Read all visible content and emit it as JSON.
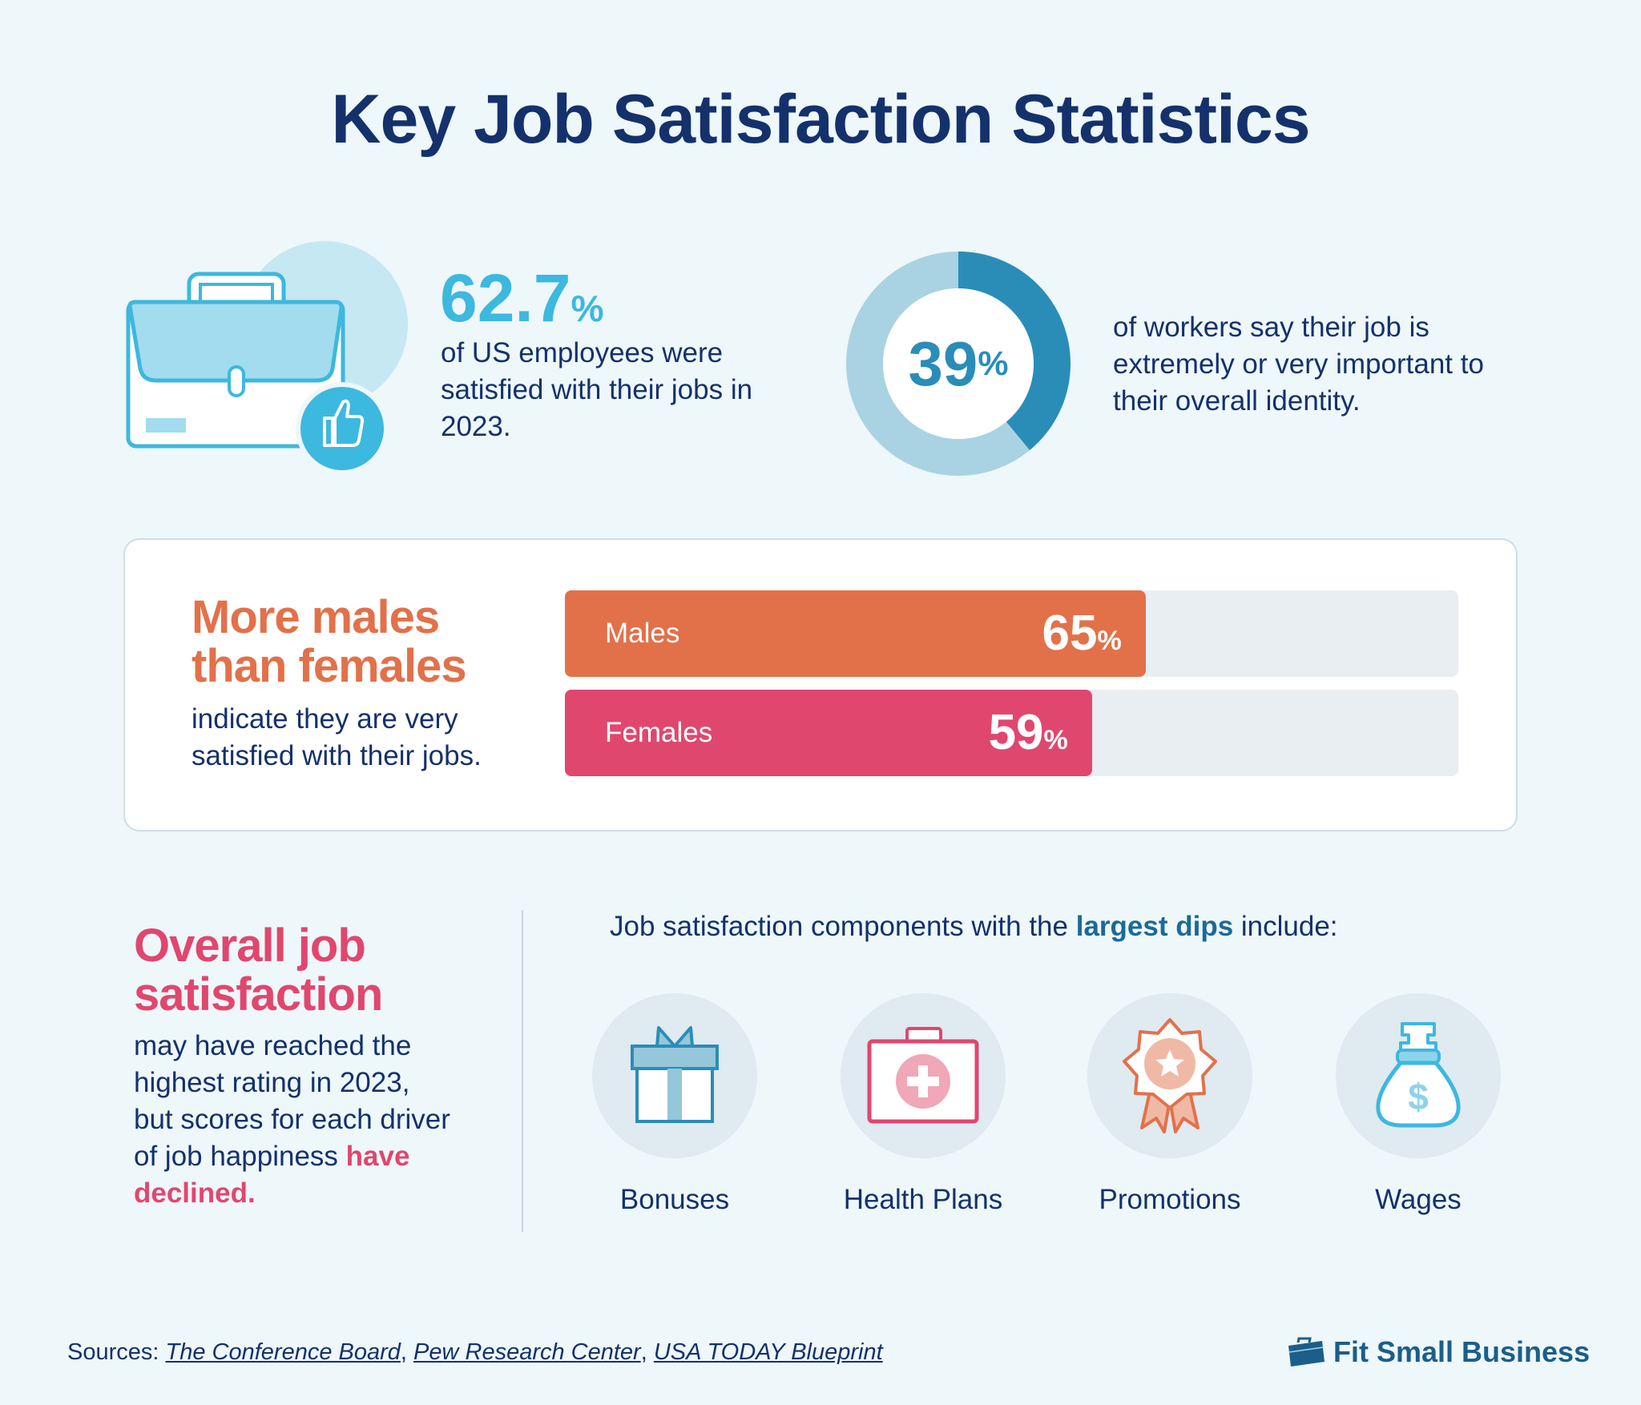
{
  "title": "Key Job Satisfaction Statistics",
  "stat_satisfied": {
    "value": "62.7",
    "unit": "%",
    "text": "of US employees were satisfied with their jobs in 2023."
  },
  "stat_identity": {
    "value": "39",
    "unit": "%",
    "fraction": 0.39,
    "text": "of workers say their job is extremely or very important to their overall identity."
  },
  "gender": {
    "heading_line1": "More males",
    "heading_line2": "than females",
    "subtext": "indicate they are very satisfied with their jobs.",
    "bars": [
      {
        "label": "Males",
        "value": 65,
        "value_text": "65",
        "unit": "%",
        "color": "#e2714a"
      },
      {
        "label": "Females",
        "value": 59,
        "value_text": "59",
        "unit": "%",
        "color": "#e0476e"
      }
    ]
  },
  "overall": {
    "heading_line1": "Overall job",
    "heading_line2": "satisfaction",
    "text": "may have reached the highest rating in 2023, but scores for each driver of job happiness",
    "text_highlight": "have declined."
  },
  "components": {
    "heading_pre": "Job satisfaction components with the ",
    "heading_highlight": "largest dips",
    "heading_post": " include:",
    "items": [
      {
        "label": "Bonuses",
        "icon": "gift-icon"
      },
      {
        "label": "Health Plans",
        "icon": "first-aid-kit-icon"
      },
      {
        "label": "Promotions",
        "icon": "award-badge-icon"
      },
      {
        "label": "Wages",
        "icon": "money-bag-icon"
      }
    ]
  },
  "sources": {
    "label": "Sources: ",
    "links": [
      "The Conference Board",
      "Pew Research Center",
      "USA TODAY Blueprint"
    ]
  },
  "brand": "Fit Small Business",
  "colors": {
    "navy": "#14316b",
    "cyan": "#3db8df",
    "orange": "#e2714a",
    "pink": "#e0476e",
    "donut_dark": "#2a8db8",
    "donut_light": "#a9d3e2"
  }
}
